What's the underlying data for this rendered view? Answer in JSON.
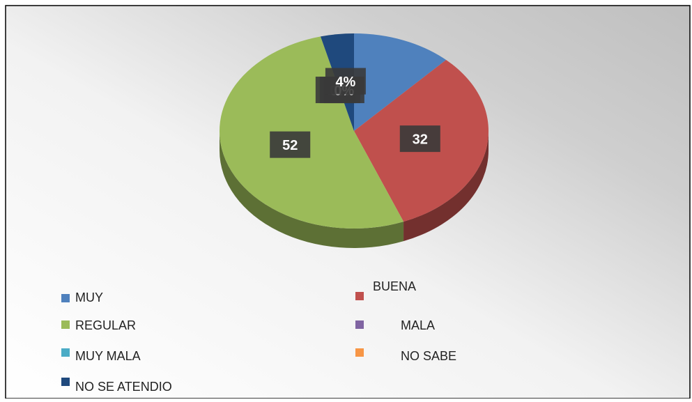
{
  "chart_data": {
    "type": "pie",
    "categories": [
      "MUY",
      "BUENA",
      "REGULAR",
      "MALA",
      "MUY MALA",
      "NO SABE",
      "NO SE ATENDIO"
    ],
    "values": [
      12,
      32,
      52,
      0,
      0,
      0,
      4
    ],
    "value_labels": [
      null,
      "32",
      "52",
      "0%",
      "0%",
      "0%",
      "4%"
    ],
    "colors": [
      "#4f81bd",
      "#c0504d",
      "#9bbb59",
      "#8064a2",
      "#4bacc6",
      "#f79646",
      "#1f497d"
    ]
  }
}
